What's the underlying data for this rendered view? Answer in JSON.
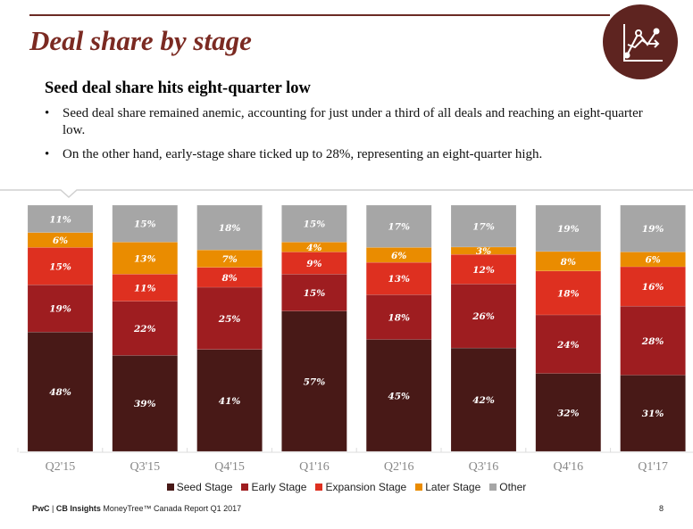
{
  "header": {
    "title": "Deal share by stage",
    "icon": "line-chart-icon",
    "brand_color": "#5e2420"
  },
  "content": {
    "subtitle": "Seed deal share hits eight-quarter low",
    "bullets": [
      "Seed deal share remained anemic, accounting for just under a third of all deals and reaching an eight-quarter low.",
      "On the other hand, early-stage share ticked up to 28%, representing an eight-quarter high."
    ]
  },
  "chart_data": {
    "type": "bar",
    "stacked": true,
    "percent": true,
    "ylim": [
      0,
      100
    ],
    "grid": false,
    "legend_position": "bottom",
    "categories": [
      "Q2'15",
      "Q3'15",
      "Q4'15",
      "Q1'16",
      "Q2'16",
      "Q3'16",
      "Q4'16",
      "Q1'17"
    ],
    "series": [
      {
        "name": "Seed Stage",
        "color": "#481917",
        "values": [
          48,
          39,
          41,
          57,
          45,
          42,
          32,
          31
        ]
      },
      {
        "name": "Early Stage",
        "color": "#9e1d20",
        "values": [
          19,
          22,
          25,
          15,
          18,
          26,
          24,
          28
        ]
      },
      {
        "name": "Expansion Stage",
        "color": "#de3020",
        "values": [
          15,
          11,
          8,
          9,
          13,
          12,
          18,
          16
        ]
      },
      {
        "name": "Later Stage",
        "color": "#ea8c00",
        "values": [
          6,
          13,
          7,
          4,
          6,
          3,
          8,
          6
        ]
      },
      {
        "name": "Other",
        "color": "#a6a6a6",
        "values": [
          11,
          15,
          18,
          15,
          17,
          17,
          19,
          19
        ]
      }
    ]
  },
  "footer": {
    "brand_a": "PwC",
    "sep": " | ",
    "brand_b": "CB Insights",
    "text": " MoneyTree™ Canada Report Q1 2017",
    "page": "8"
  }
}
